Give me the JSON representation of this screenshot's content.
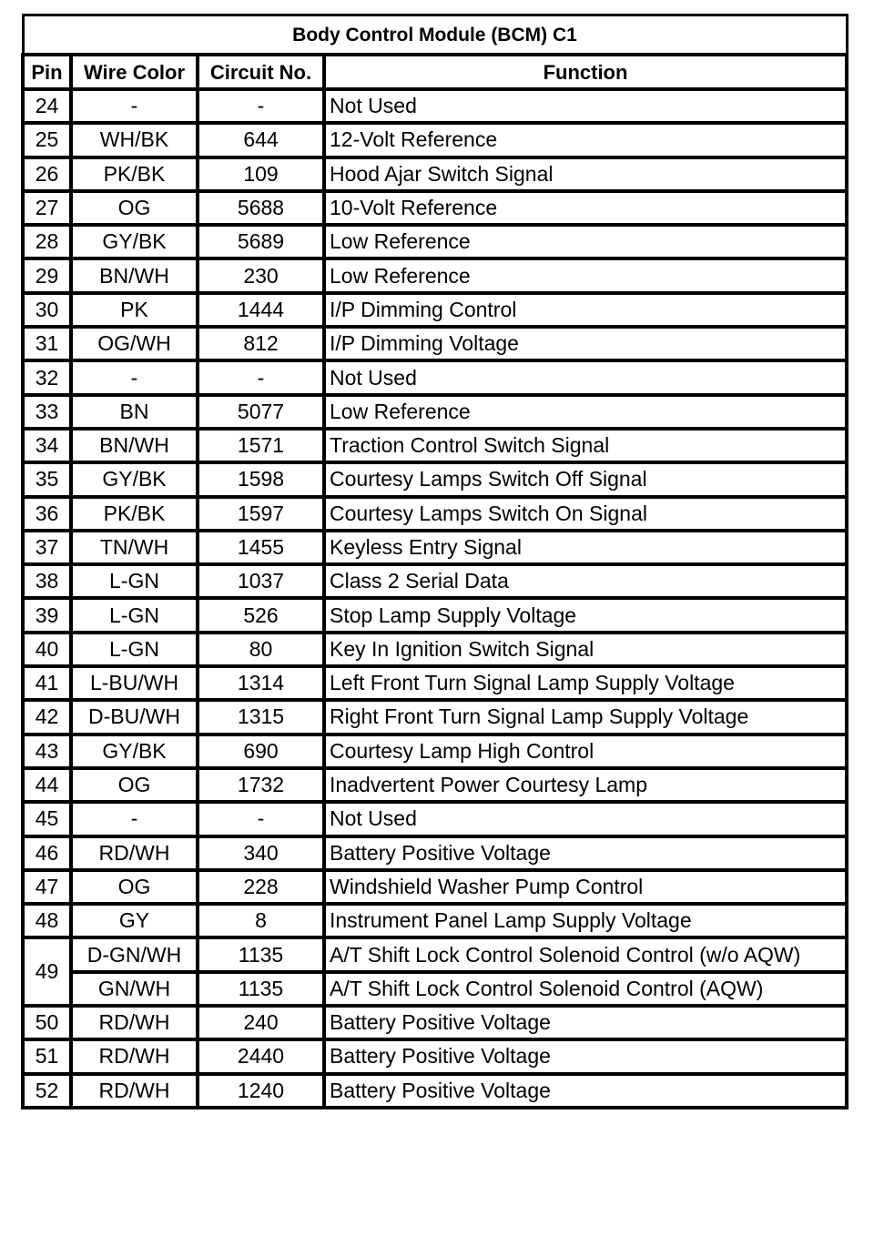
{
  "title": "Body Control Module (BCM) C1",
  "headers": {
    "pin": "Pin",
    "wire_color": "Wire Color",
    "circuit": "Circuit No.",
    "function": "Function"
  },
  "rows": [
    {
      "pin": "24",
      "wire": "-",
      "circuit": "-",
      "function": "Not Used"
    },
    {
      "pin": "25",
      "wire": "WH/BK",
      "circuit": "644",
      "function": "12-Volt Reference"
    },
    {
      "pin": "26",
      "wire": "PK/BK",
      "circuit": "109",
      "function": "Hood Ajar Switch Signal"
    },
    {
      "pin": "27",
      "wire": "OG",
      "circuit": "5688",
      "function": "10-Volt Reference"
    },
    {
      "pin": "28",
      "wire": "GY/BK",
      "circuit": "5689",
      "function": "Low Reference"
    },
    {
      "pin": "29",
      "wire": "BN/WH",
      "circuit": "230",
      "function": "Low Reference"
    },
    {
      "pin": "30",
      "wire": "PK",
      "circuit": "1444",
      "function": "I/P Dimming Control"
    },
    {
      "pin": "31",
      "wire": "OG/WH",
      "circuit": "812",
      "function": "I/P Dimming Voltage"
    },
    {
      "pin": "32",
      "wire": "-",
      "circuit": "-",
      "function": "Not Used"
    },
    {
      "pin": "33",
      "wire": "BN",
      "circuit": "5077",
      "function": "Low Reference"
    },
    {
      "pin": "34",
      "wire": "BN/WH",
      "circuit": "1571",
      "function": "Traction Control Switch Signal"
    },
    {
      "pin": "35",
      "wire": "GY/BK",
      "circuit": "1598",
      "function": "Courtesy Lamps Switch Off Signal"
    },
    {
      "pin": "36",
      "wire": "PK/BK",
      "circuit": "1597",
      "function": "Courtesy Lamps Switch On Signal"
    },
    {
      "pin": "37",
      "wire": "TN/WH",
      "circuit": "1455",
      "function": "Keyless Entry Signal"
    },
    {
      "pin": "38",
      "wire": "L-GN",
      "circuit": "1037",
      "function": "Class 2 Serial Data"
    },
    {
      "pin": "39",
      "wire": "L-GN",
      "circuit": "526",
      "function": "Stop Lamp Supply Voltage"
    },
    {
      "pin": "40",
      "wire": "L-GN",
      "circuit": "80",
      "function": "Key In Ignition Switch Signal"
    },
    {
      "pin": "41",
      "wire": "L-BU/WH",
      "circuit": "1314",
      "function": "Left Front Turn Signal Lamp Supply Voltage"
    },
    {
      "pin": "42",
      "wire": "D-BU/WH",
      "circuit": "1315",
      "function": "Right Front Turn Signal Lamp Supply Voltage"
    },
    {
      "pin": "43",
      "wire": "GY/BK",
      "circuit": "690",
      "function": "Courtesy Lamp High Control"
    },
    {
      "pin": "44",
      "wire": "OG",
      "circuit": "1732",
      "function": "Inadvertent Power Courtesy Lamp"
    },
    {
      "pin": "45",
      "wire": "-",
      "circuit": "-",
      "function": "Not Used"
    },
    {
      "pin": "46",
      "wire": "RD/WH",
      "circuit": "340",
      "function": "Battery Positive Voltage"
    },
    {
      "pin": "47",
      "wire": "OG",
      "circuit": "228",
      "function": "Windshield Washer Pump Control"
    },
    {
      "pin": "48",
      "wire": "GY",
      "circuit": "8",
      "function": "Instrument Panel Lamp Supply Voltage"
    },
    {
      "pin": "49",
      "wire": "D-GN/WH",
      "circuit": "1135",
      "function": "A/T Shift Lock Control Solenoid Control (w/o AQW)",
      "rowspan": 2
    },
    {
      "pin": "",
      "wire": "GN/WH",
      "circuit": "1135",
      "function": "A/T Shift Lock Control Solenoid Control (AQW)",
      "continued": true
    },
    {
      "pin": "50",
      "wire": "RD/WH",
      "circuit": "240",
      "function": "Battery Positive Voltage"
    },
    {
      "pin": "51",
      "wire": "RD/WH",
      "circuit": "2440",
      "function": "Battery Positive Voltage"
    },
    {
      "pin": "52",
      "wire": "RD/WH",
      "circuit": "1240",
      "function": "Battery Positive Voltage"
    }
  ]
}
